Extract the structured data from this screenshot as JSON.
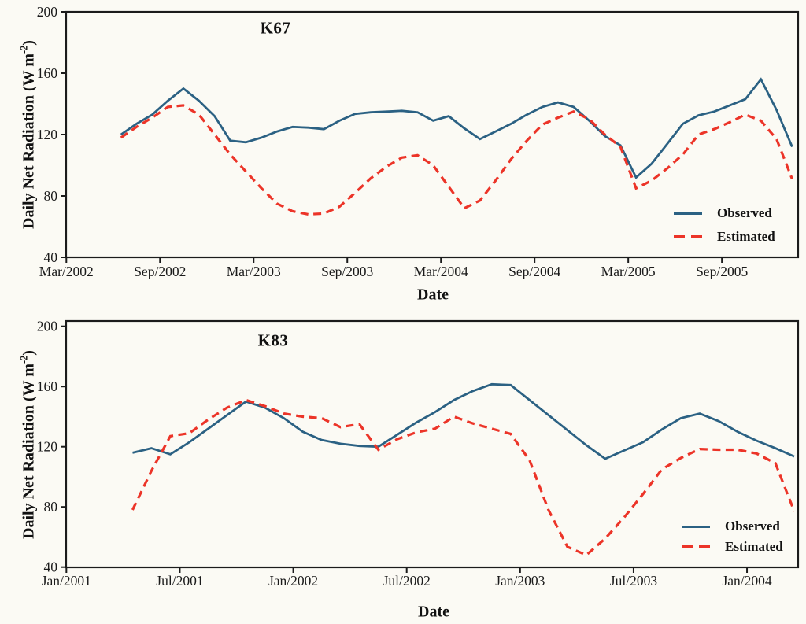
{
  "figure": {
    "background": "#fbfaf4",
    "observed_color": "#2b6183",
    "estimated_color": "#ec3428",
    "axis_color": "#1b1b1b"
  },
  "panels": [
    {
      "title": "K67",
      "xlabel": "Date",
      "ylabel_pre": "Daily Net Radiation (W m",
      "ylabel_sup": "-2",
      "ylabel_post": ")",
      "legend": {
        "observed": "Observed",
        "estimated": "Estimated"
      }
    },
    {
      "title": "K83",
      "xlabel": "Date",
      "ylabel_pre": "Daily Net Radiation (W m",
      "ylabel_sup": "-2",
      "ylabel_post": ")",
      "legend": {
        "observed": "Observed",
        "estimated": "Estimated"
      }
    }
  ],
  "chart_data": [
    {
      "type": "line",
      "title": "K67",
      "xlabel": "Date",
      "ylabel": "Daily Net Radiation (W m-2)",
      "ylim": [
        40,
        200
      ],
      "y_ticks": [
        200,
        160,
        120,
        80,
        40
      ],
      "x_tick_labels": [
        "Mar/2002",
        "Sep/2002",
        "Mar/2003",
        "Sep/2003",
        "Mar/2004",
        "Sep/2004",
        "Mar/2005",
        "Sep/2005"
      ],
      "x_tick_first_index": -3.5,
      "x_tick_step_months": 6,
      "grid": false,
      "legend_position": "lower right",
      "categories": [
        "Jun/2002",
        "Jul/2002",
        "Aug/2002",
        "Sep/2002",
        "Oct/2002",
        "Nov/2002",
        "Dec/2002",
        "Jan/2003",
        "Feb/2003",
        "Mar/2003",
        "Apr/2003",
        "May/2003",
        "Jun/2003",
        "Jul/2003",
        "Aug/2003",
        "Sep/2003",
        "Oct/2003",
        "Nov/2003",
        "Dec/2003",
        "Jan/2004",
        "Feb/2004",
        "Mar/2004",
        "Apr/2004",
        "May/2004",
        "Jun/2004",
        "Jul/2004",
        "Aug/2004",
        "Sep/2004",
        "Oct/2004",
        "Nov/2004",
        "Dec/2004",
        "Jan/2005",
        "Feb/2005",
        "Mar/2005",
        "Apr/2005",
        "May/2005",
        "Jun/2005",
        "Jul/2005",
        "Aug/2005",
        "Sep/2005",
        "Oct/2005",
        "Nov/2005",
        "Dec/2005",
        "Jan/2006"
      ],
      "series": [
        {
          "name": "Observed",
          "style": "solid",
          "values": [
            120,
            127,
            133,
            142,
            150,
            142,
            132,
            116,
            115,
            118,
            122,
            125,
            124.5,
            123.5,
            129,
            133.5,
            134.5,
            135,
            135.5,
            134.5,
            129,
            132,
            124,
            117,
            122,
            127,
            133,
            138,
            141,
            138,
            129,
            119,
            113,
            92,
            101,
            114,
            127,
            132.5,
            135,
            139,
            143,
            156,
            136,
            112
          ]
        },
        {
          "name": "Estimated",
          "style": "dashed",
          "values": [
            118,
            125,
            131,
            138,
            139,
            133,
            120,
            107,
            96,
            85,
            75,
            70,
            68,
            68.5,
            73,
            82,
            91.5,
            99,
            105,
            106.5,
            100,
            86,
            72,
            77,
            90,
            104,
            116,
            126.5,
            131,
            135,
            130,
            120,
            112,
            85,
            90,
            98,
            107,
            120,
            123.5,
            128,
            133,
            129,
            117,
            91
          ]
        }
      ]
    },
    {
      "type": "line",
      "title": "K83",
      "xlabel": "Date",
      "ylabel": "Daily Net Radiation (W m-2)",
      "ylim": [
        40,
        200
      ],
      "y_ticks": [
        200,
        160,
        120,
        80,
        40
      ],
      "x_tick_labels": [
        "Jan/2001",
        "Jul/2001",
        "Jan/2002",
        "Jul/2002",
        "Jan/2003",
        "Jul/2003",
        "Jan/2004"
      ],
      "x_tick_first_index": -3.5,
      "x_tick_step_months": 6,
      "grid": false,
      "legend_position": "lower right",
      "categories": [
        "Apr/2001",
        "May/2001",
        "Jun/2001",
        "Jul/2001",
        "Aug/2001",
        "Sep/2001",
        "Oct/2001",
        "Nov/2001",
        "Dec/2001",
        "Jan/2002",
        "Feb/2002",
        "Mar/2002",
        "Apr/2002",
        "May/2002",
        "Jun/2002",
        "Jul/2002",
        "Aug/2002",
        "Sep/2002",
        "Oct/2002",
        "Nov/2002",
        "Dec/2002",
        "Jan/2003",
        "Feb/2003",
        "Mar/2003",
        "Apr/2003",
        "May/2003",
        "Jun/2003",
        "Jul/2003",
        "Aug/2003",
        "Sep/2003",
        "Oct/2003",
        "Nov/2003",
        "Dec/2003",
        "Jan/2004",
        "Feb/2004",
        "Mar/2004"
      ],
      "series": [
        {
          "name": "Observed",
          "style": "solid",
          "values": [
            116,
            119,
            115,
            123,
            132,
            141,
            150,
            146,
            139,
            130,
            124.5,
            122,
            120.5,
            120,
            128,
            136,
            143,
            151,
            157,
            161.5,
            161,
            151,
            141,
            131,
            121,
            112,
            117.5,
            123,
            131.5,
            139,
            142,
            137,
            130,
            124,
            119,
            113.5
          ]
        },
        {
          "name": "Estimated",
          "style": "dashed",
          "values": [
            78,
            104,
            127,
            129,
            138,
            146,
            151,
            147,
            142,
            140,
            139,
            133,
            135,
            118,
            125,
            129.5,
            132,
            140,
            135.5,
            132,
            128.5,
            111,
            78,
            53.5,
            48,
            59,
            73,
            88.5,
            105,
            112.5,
            118.5,
            118,
            118,
            115.5,
            109,
            77
          ]
        }
      ]
    }
  ]
}
